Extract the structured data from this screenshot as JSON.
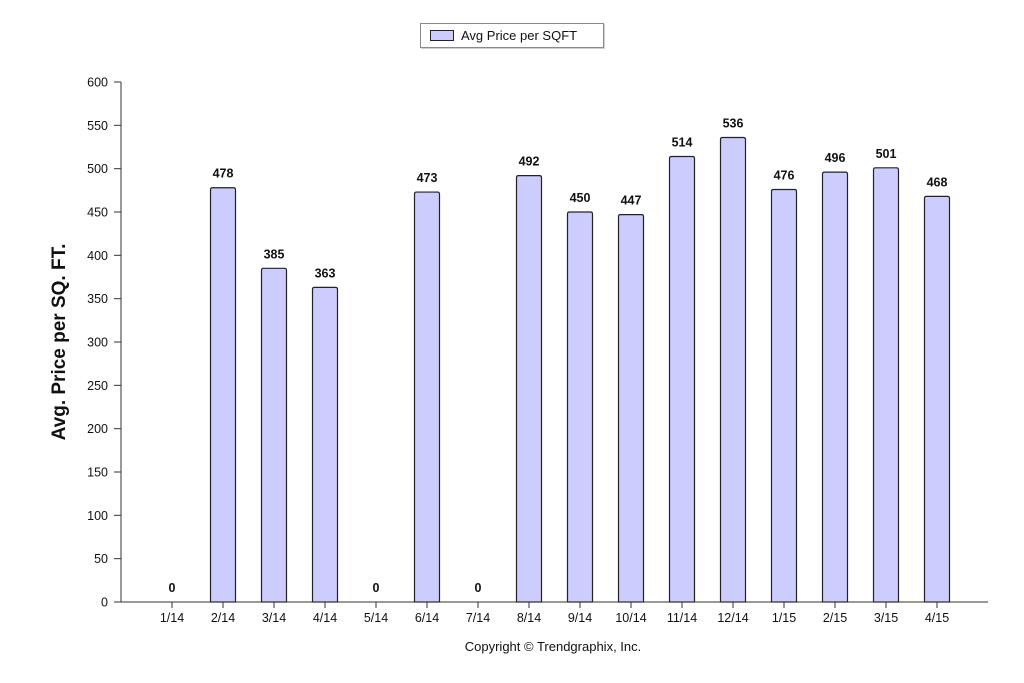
{
  "chart_data": {
    "type": "bar",
    "categories": [
      "1/14",
      "2/14",
      "3/14",
      "4/14",
      "5/14",
      "6/14",
      "7/14",
      "8/14",
      "9/14",
      "10/14",
      "11/14",
      "12/14",
      "1/15",
      "2/15",
      "3/15",
      "4/15"
    ],
    "series": [
      {
        "name": "Avg Price per SQFT",
        "values": [
          0,
          478,
          385,
          363,
          0,
          473,
          0,
          492,
          450,
          447,
          514,
          536,
          476,
          496,
          501,
          468
        ]
      }
    ],
    "ylabel": "Avg. Price per SQ. FT.",
    "xlabel": "",
    "ylim": [
      0,
      600
    ],
    "yticks": [
      0,
      50,
      100,
      150,
      200,
      250,
      300,
      350,
      400,
      450,
      500,
      550,
      600
    ],
    "grid": false,
    "legend_position": "top-center",
    "bar_color": "#ccccff",
    "bar_edge_color": "#222222"
  },
  "footer": {
    "copyright": "Copyright © Trendgraphix, Inc."
  }
}
